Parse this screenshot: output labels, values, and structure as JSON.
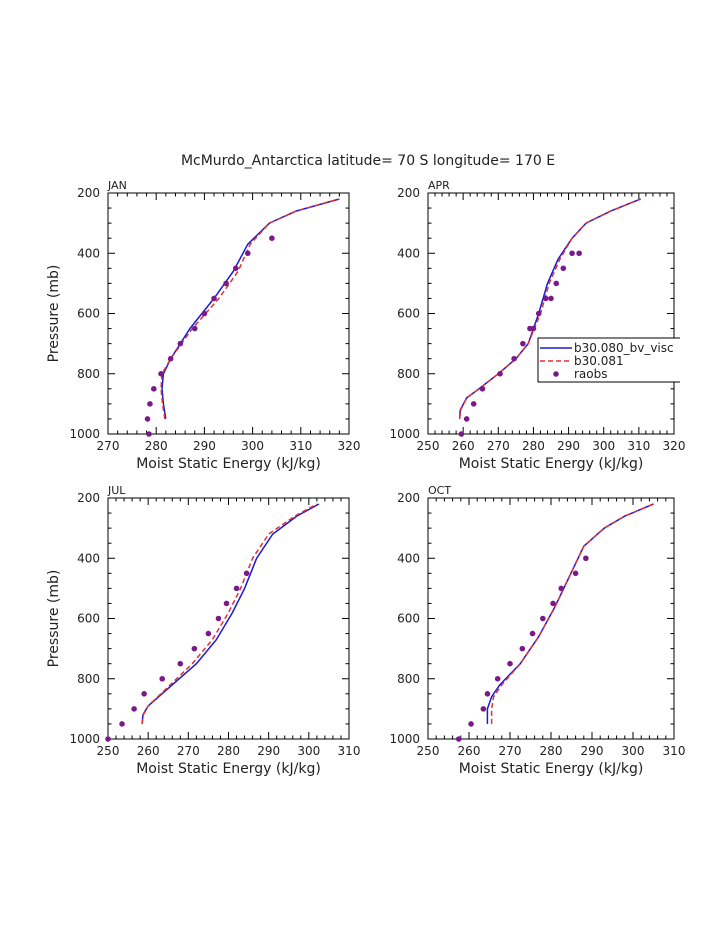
{
  "figure": {
    "title": "McMurdo_Antarctica  latitude= 70 S longitude= 170 E"
  },
  "legend": {
    "entries": [
      {
        "label": "b30.080_bv_visc",
        "color": "#1a1ad6",
        "style": "solid"
      },
      {
        "label": "b30.081",
        "color": "#e03030",
        "style": "dashed"
      },
      {
        "label": "raobs",
        "color": "#7a1a8a",
        "style": "dot"
      }
    ]
  },
  "chart_data": [
    {
      "type": "line",
      "panel": "JAN",
      "title": "JAN",
      "xlabel": "Moist Static Energy (kJ/kg)",
      "ylabel": "Pressure (mb)",
      "xlim": [
        270,
        320
      ],
      "ylim": [
        1000,
        200
      ],
      "xticks": [
        270,
        280,
        290,
        300,
        310,
        320
      ],
      "yticks": [
        200,
        400,
        600,
        800,
        1000
      ],
      "series": [
        {
          "name": "b30.080_bv_visc",
          "x": [
            282.0,
            281.5,
            281.2,
            281.5,
            283.0,
            287.0,
            292.0,
            296.0,
            299.0,
            303.5,
            309.0,
            318.0
          ],
          "y": [
            950,
            900,
            850,
            800,
            750,
            650,
            550,
            460,
            370,
            300,
            260,
            220
          ]
        },
        {
          "name": "b30.081",
          "x": [
            281.8,
            281.3,
            281.0,
            281.2,
            283.0,
            287.5,
            293.0,
            297.0,
            299.5,
            303.5,
            309.0,
            318.0
          ],
          "y": [
            950,
            900,
            850,
            800,
            750,
            650,
            550,
            460,
            370,
            300,
            260,
            220
          ]
        },
        {
          "name": "raobs",
          "x": [
            278.5,
            278.2,
            278.7,
            279.5,
            281.0,
            283.0,
            285.0,
            288.0,
            290.0,
            292.0,
            294.5,
            296.5,
            299.0,
            304.0
          ],
          "y": [
            1000,
            950,
            900,
            850,
            800,
            750,
            700,
            650,
            600,
            550,
            500,
            450,
            400,
            350
          ]
        }
      ]
    },
    {
      "type": "line",
      "panel": "APR",
      "title": "APR",
      "xlabel": "Moist Static Energy (kJ/kg)",
      "ylabel": "",
      "xlim": [
        250,
        320
      ],
      "ylim": [
        1000,
        200
      ],
      "xticks": [
        250,
        260,
        270,
        280,
        290,
        300,
        310,
        320
      ],
      "yticks": [
        200,
        400,
        600,
        800,
        1000
      ],
      "series": [
        {
          "name": "b30.080_bv_visc",
          "x": [
            259.0,
            259.2,
            261.0,
            264.5,
            270.0,
            275.0,
            278.5,
            281.5,
            284.0,
            287.0,
            291.0,
            295.0,
            302.0,
            310.5
          ],
          "y": [
            950,
            920,
            880,
            850,
            800,
            750,
            700,
            600,
            500,
            420,
            350,
            300,
            260,
            220
          ]
        },
        {
          "name": "b30.081",
          "x": [
            259.0,
            259.3,
            261.0,
            264.5,
            270.0,
            275.0,
            278.5,
            282.0,
            284.5,
            287.5,
            291.0,
            295.0,
            302.0,
            310.5
          ],
          "y": [
            950,
            920,
            880,
            850,
            800,
            750,
            700,
            600,
            500,
            420,
            350,
            300,
            260,
            220
          ]
        },
        {
          "name": "raobs",
          "x": [
            259.5,
            261.0,
            263.0,
            265.5,
            270.5,
            274.5,
            277.0,
            279.0,
            280.0,
            281.5,
            283.5,
            285.0,
            286.5,
            288.5,
            291.0,
            293.0
          ],
          "y": [
            1000,
            950,
            900,
            850,
            800,
            750,
            700,
            650,
            650,
            600,
            550,
            550,
            500,
            450,
            400,
            400
          ]
        }
      ]
    },
    {
      "type": "line",
      "panel": "JUL",
      "title": "JUL",
      "xlabel": "Moist Static Energy (kJ/kg)",
      "ylabel": "Pressure (mb)",
      "xlim": [
        250,
        310
      ],
      "ylim": [
        1000,
        200
      ],
      "xticks": [
        250,
        260,
        270,
        280,
        290,
        300,
        310
      ],
      "yticks": [
        200,
        400,
        600,
        800,
        1000
      ],
      "series": [
        {
          "name": "b30.080_bv_visc",
          "x": [
            258.5,
            258.7,
            260.0,
            266.0,
            272.0,
            277.0,
            281.0,
            284.0,
            287.0,
            291.0,
            297.0,
            302.5
          ],
          "y": [
            950,
            920,
            890,
            820,
            750,
            670,
            580,
            500,
            400,
            320,
            260,
            220
          ]
        },
        {
          "name": "b30.081",
          "x": [
            258.5,
            258.8,
            260.0,
            265.5,
            271.0,
            276.0,
            280.0,
            283.0,
            286.0,
            290.0,
            296.5,
            302.0
          ],
          "y": [
            950,
            920,
            890,
            820,
            750,
            670,
            580,
            500,
            400,
            320,
            260,
            220
          ]
        },
        {
          "name": "raobs",
          "x": [
            250.0,
            253.5,
            256.5,
            259.0,
            263.5,
            268.0,
            271.5,
            275.0,
            277.5,
            279.5,
            282.0,
            284.5
          ],
          "y": [
            1000,
            950,
            900,
            850,
            800,
            750,
            700,
            650,
            600,
            550,
            500,
            450
          ]
        }
      ]
    },
    {
      "type": "line",
      "panel": "OCT",
      "title": "OCT",
      "xlabel": "Moist Static Energy (kJ/kg)",
      "ylabel": "",
      "xlim": [
        250,
        310
      ],
      "ylim": [
        1000,
        200
      ],
      "xticks": [
        250,
        260,
        270,
        280,
        290,
        300,
        310
      ],
      "yticks": [
        200,
        400,
        600,
        800,
        1000
      ],
      "series": [
        {
          "name": "b30.080_bv_visc",
          "x": [
            264.5,
            264.5,
            265.5,
            267.5,
            272.5,
            277.0,
            281.0,
            284.5,
            288.0,
            293.0,
            298.0,
            305.0
          ],
          "y": [
            950,
            900,
            860,
            820,
            750,
            660,
            560,
            460,
            360,
            300,
            260,
            220
          ]
        },
        {
          "name": "b30.081",
          "x": [
            265.5,
            265.5,
            266.0,
            268.0,
            272.5,
            277.0,
            281.0,
            284.5,
            288.0,
            293.0,
            298.0,
            305.0
          ],
          "y": [
            950,
            900,
            860,
            820,
            750,
            660,
            560,
            460,
            360,
            300,
            260,
            220
          ]
        },
        {
          "name": "raobs",
          "x": [
            257.5,
            260.5,
            263.5,
            264.5,
            267.0,
            270.0,
            273.0,
            275.5,
            278.0,
            280.5,
            282.5,
            286.0,
            288.5
          ],
          "y": [
            1000,
            950,
            900,
            850,
            800,
            750,
            700,
            650,
            600,
            550,
            500,
            450,
            400
          ]
        }
      ]
    }
  ]
}
